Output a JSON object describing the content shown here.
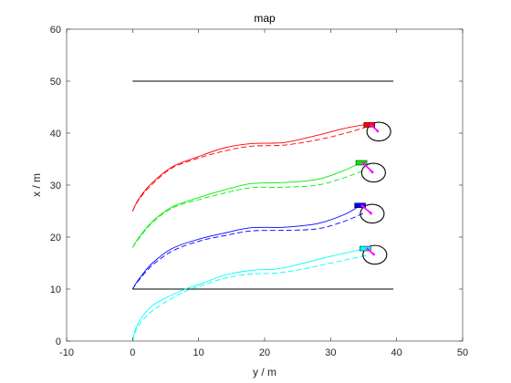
{
  "chart_data": {
    "type": "line",
    "title": "map",
    "xlabel": "y / m",
    "ylabel": "x / m",
    "xlim": [
      -10,
      50
    ],
    "ylim": [
      0,
      60
    ],
    "xticks": [
      -10,
      0,
      10,
      20,
      30,
      40,
      50
    ],
    "yticks": [
      0,
      10,
      20,
      30,
      40,
      50,
      60
    ],
    "grid": false,
    "legend": "none",
    "boundaries": [
      {
        "x": [
          0,
          39.5
        ],
        "y": [
          50,
          50
        ],
        "color": "#000000"
      },
      {
        "x": [
          0,
          39.5
        ],
        "y": [
          10,
          10
        ],
        "color": "#000000"
      }
    ],
    "series": [
      {
        "color": "#ff0000",
        "solid": {
          "x": [
            0,
            1,
            3,
            6,
            10,
            14,
            18,
            23,
            28,
            32,
            35
          ],
          "y": [
            25,
            27.5,
            30.5,
            33.5,
            35.5,
            37.2,
            38,
            38.2,
            39.6,
            40.9,
            41.6
          ]
        },
        "dashed": {
          "x": [
            0,
            1,
            3,
            6,
            10,
            14,
            18,
            23,
            28,
            32,
            35.5
          ],
          "y": [
            25,
            27.3,
            30.2,
            33.3,
            35.2,
            36.6,
            37.5,
            37.7,
            38.7,
            39.9,
            41.2
          ]
        },
        "vehicle": {
          "x": 36,
          "y": 41.6
        },
        "circle": {
          "x": 37.3,
          "y": 40.3,
          "r": 1.8
        }
      },
      {
        "color": "#00ee00",
        "solid": {
          "x": [
            0,
            1,
            3,
            6,
            10,
            14,
            18,
            23,
            28,
            32,
            34.5
          ],
          "y": [
            18,
            20,
            23,
            25.8,
            27.6,
            29.1,
            30.3,
            30.5,
            31.1,
            32.8,
            34.3
          ]
        },
        "dashed": {
          "x": [
            0,
            1,
            3,
            6,
            10,
            14,
            18,
            23,
            28,
            32,
            35
          ],
          "y": [
            18,
            19.8,
            22.8,
            25.6,
            27.2,
            28.5,
            29.5,
            29.6,
            30,
            31.4,
            32.8
          ]
        },
        "vehicle": {
          "x": 34.8,
          "y": 34.3
        },
        "circle": {
          "x": 36.5,
          "y": 32.4,
          "r": 1.8
        }
      },
      {
        "color": "#0000ff",
        "solid": {
          "x": [
            0,
            1,
            3,
            6,
            10,
            14,
            18,
            23,
            28,
            32,
            34.5
          ],
          "y": [
            10,
            12,
            15,
            17.8,
            19.6,
            20.8,
            21.8,
            21.9,
            22.6,
            24.3,
            26.1
          ]
        },
        "dashed": {
          "x": [
            0,
            1,
            3,
            6,
            10,
            14,
            18,
            23,
            28,
            32,
            35
          ],
          "y": [
            10,
            11.8,
            14.6,
            17.3,
            19.2,
            20.3,
            21.2,
            21.3,
            21.6,
            23,
            24.6
          ]
        },
        "vehicle": {
          "x": 34.6,
          "y": 26.1
        },
        "circle": {
          "x": 36.3,
          "y": 24.5,
          "r": 1.8
        }
      },
      {
        "color": "#00ffff",
        "solid": {
          "x": [
            0,
            0.5,
            1.5,
            3,
            5,
            8,
            11,
            14,
            18,
            22,
            26,
            30,
            35
          ],
          "y": [
            0,
            2.5,
            4.8,
            6.8,
            8.3,
            10,
            11.3,
            12.7,
            13.6,
            13.9,
            15,
            16.3,
            17.7
          ]
        },
        "dashed": {
          "x": [
            0,
            0.5,
            1.5,
            3,
            5,
            8,
            11,
            14,
            18,
            22,
            26,
            30,
            35.5
          ],
          "y": [
            0,
            2,
            4,
            5.8,
            7.5,
            9.6,
            10.9,
            12.1,
            12.9,
            13.1,
            13.9,
            15,
            16.5
          ]
        },
        "vehicle": {
          "x": 35.4,
          "y": 17.8
        },
        "circle": {
          "x": 36.7,
          "y": 16.6,
          "r": 1.8
        }
      }
    ],
    "indicator_color": "#ff00ff"
  }
}
